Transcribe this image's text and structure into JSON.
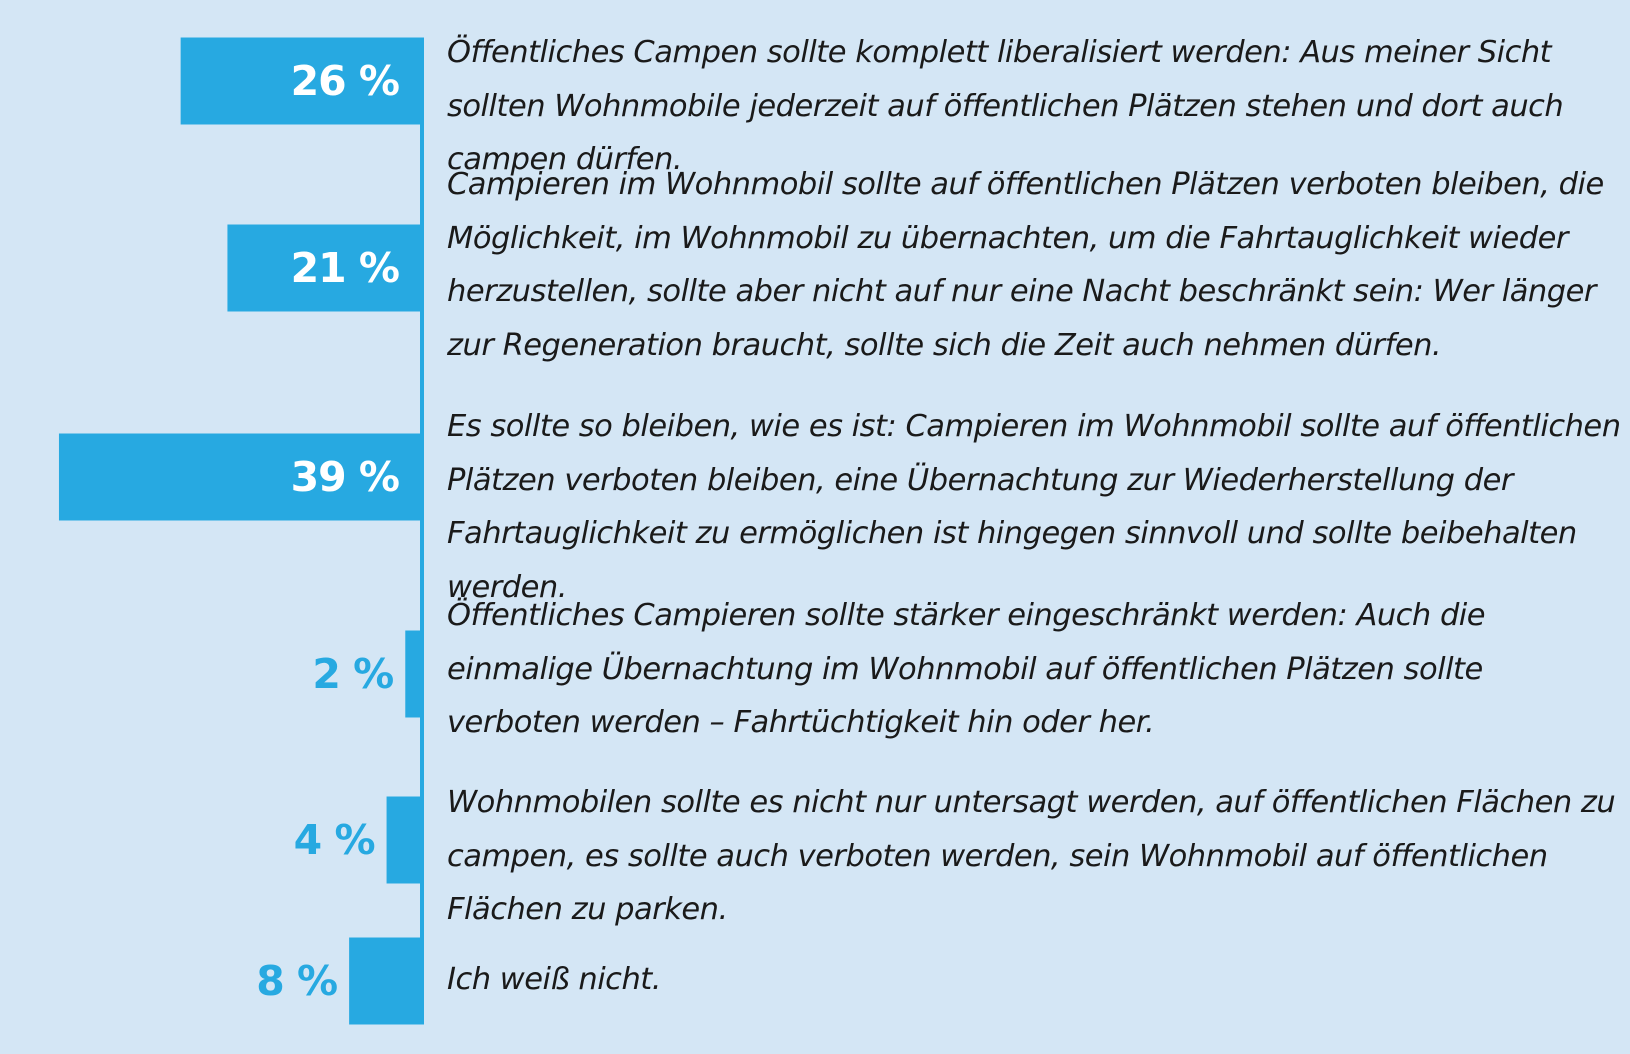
{
  "chart_data": {
    "type": "bar",
    "orientation": "horizontal",
    "colors": {
      "background": "#d4e6f5",
      "bar": "#27a9e1",
      "label_inside": "#ffffff",
      "label_outside": "#27a9e1",
      "text": "#1a1a1a"
    },
    "categories": [
      "Öffentliches Campen sollte komplett liberalisiert werden: Aus meiner Sicht sollten Wohnmobile jederzeit auf öffentlichen Plätzen stehen und dort auch campen dürfen.",
      "Campieren im Wohnmobil sollte auf öffentlichen Plätzen verboten bleiben, die Möglichkeit, im Wohnmobil zu übernachten, um die Fahrtauglichkeit wieder herzustellen, sollte aber nicht auf nur eine Nacht beschränkt sein: Wer länger zur Regeneration braucht, sollte sich die Zeit auch nehmen dürfen.",
      "Es sollte so bleiben, wie es ist: Campieren im Wohnmobil sollte auf öffentlichen Plätzen verboten bleiben, eine Übernachtung zur Wiederherstellung der Fahrtaug­lichkeit zu ermöglichen ist hingegen sinnvoll und sollte beibehalten werden.",
      "Öffentliches Campieren sollte stärker eingeschränkt werden: Auch die einmalige Übernachtung im Wohnmobil auf öffentlichen Plätzen sollte verboten werden – Fahrtüchtigkeit hin oder her.",
      "Wohnmobilen sollte es nicht nur untersagt werden, auf öffentlichen Flächen zu campen, es sollte auch verboten werden, sein Wohnmobil auf öffentlichen Flächen zu parken.",
      "Ich weiß nicht."
    ],
    "values": [
      26,
      21,
      39,
      2,
      4,
      8
    ],
    "value_labels": [
      "26 %",
      "21 %",
      "39 %",
      "2 %",
      "4 %",
      "8 %"
    ],
    "xlim": [
      0,
      39
    ],
    "grid": false,
    "legend": "none"
  }
}
